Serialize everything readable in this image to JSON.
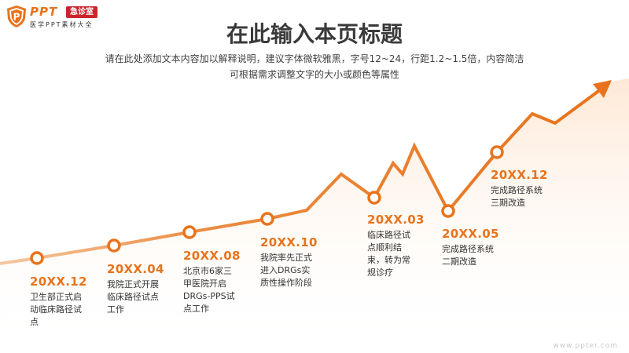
{
  "logo": {
    "ppt": "PPT",
    "badge": "急诊室",
    "sub": "医学PPT素材大全",
    "shield_letter": "P"
  },
  "title": "在此输入本页标题",
  "subtitle_lines": [
    "请在此处添加文本内容加以解释说明，建议字体微软雅黑，字号12~24，行距1.2~1.5倍，内容简洁",
    "可根据需求调整文字的大小或颜色等属性"
  ],
  "milestones": [
    {
      "date": "20XX.12",
      "text": "卫生部正式启动临床路径试点"
    },
    {
      "date": "20XX.04",
      "text": "我院正式开展临床路径试点工作"
    },
    {
      "date": "20XX.08",
      "text": "北京市6家三甲医院开启DRGs-PPS试点工作"
    },
    {
      "date": "20XX.10",
      "text": "我院率先正式进入DRGs实质性操作阶段"
    },
    {
      "date": "20XX.03",
      "text": "临床路径试点顺利结束，转为常规诊疗"
    },
    {
      "date": "20XX.05",
      "text": "完成路径系统二期改造"
    },
    {
      "date": "20XX.12",
      "text": "完成路径系统三期改造"
    }
  ],
  "colors": {
    "accent": "#e8731c",
    "accent_light": "#fde3cc",
    "title": "#3a3a3a",
    "badge": "#c8262c"
  },
  "watermark": "www.ppter.com"
}
